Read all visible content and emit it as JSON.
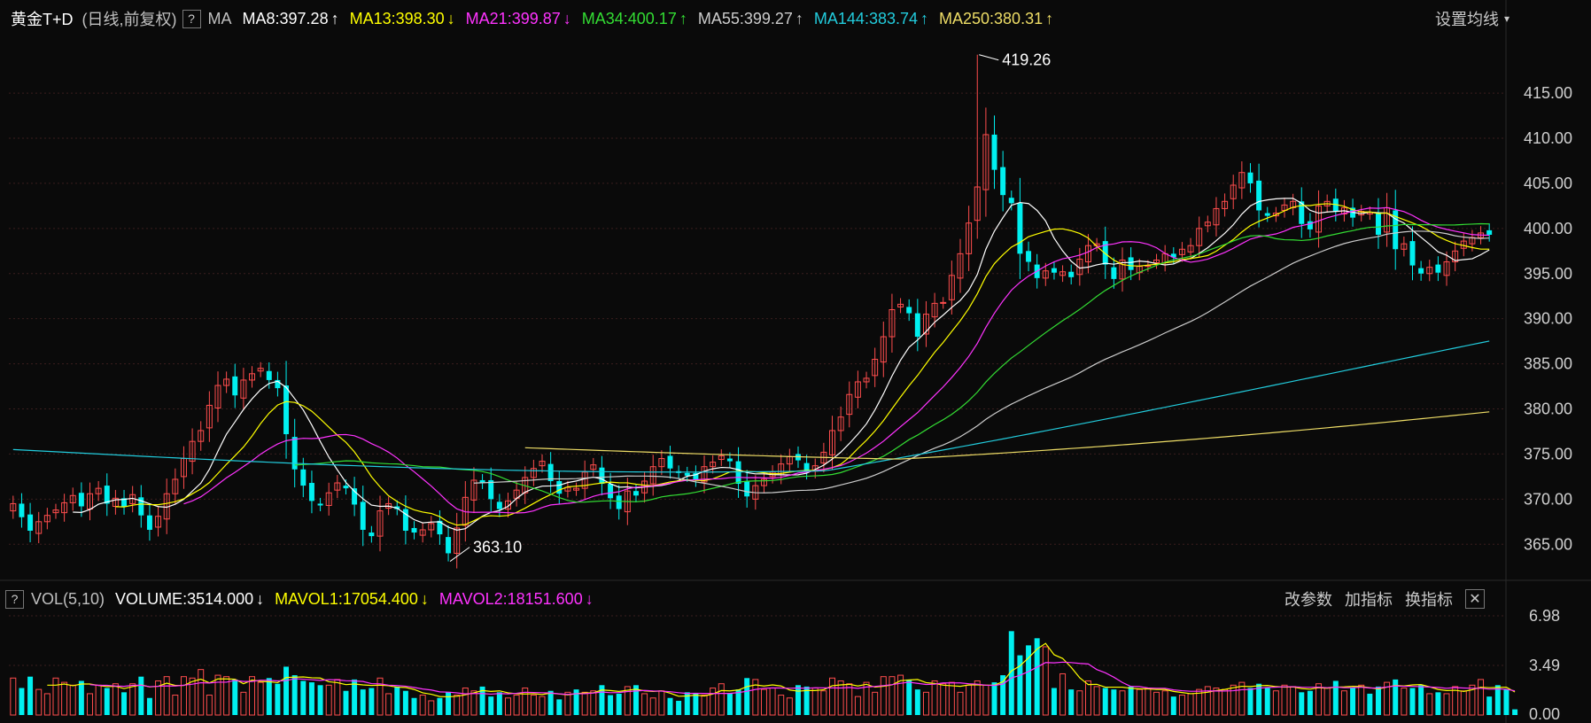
{
  "header": {
    "symbol": "黄金T+D",
    "period": "(日线,前复权)",
    "help": "?",
    "ma_prefix": "MA",
    "ma_items": [
      {
        "label": "MA8:397.28",
        "dir": "↑",
        "color": "#ffffff"
      },
      {
        "label": "MA13:398.30",
        "dir": "↓",
        "color": "#ffff00"
      },
      {
        "label": "MA21:399.87",
        "dir": "↓",
        "color": "#ff33ff"
      },
      {
        "label": "MA34:400.17",
        "dir": "↑",
        "color": "#33dd33"
      },
      {
        "label": "MA55:399.27",
        "dir": "↑",
        "color": "#cccccc"
      },
      {
        "label": "MA144:383.74",
        "dir": "↑",
        "color": "#22ccdd"
      },
      {
        "label": "MA250:380.31",
        "dir": "↑",
        "color": "#eedd66"
      }
    ],
    "settings": "设置均线",
    "settings_icon": "caret-down-icon"
  },
  "volume_header": {
    "help": "?",
    "name": "VOL(5,10)",
    "items": [
      {
        "label": "VOLUME:3514.000",
        "dir": "↓",
        "color": "#ffffff"
      },
      {
        "label": "MAVOL1:17054.400",
        "dir": "↓",
        "color": "#ffff00"
      },
      {
        "label": "MAVOL2:18151.600",
        "dir": "↓",
        "color": "#ff33ff"
      }
    ],
    "links": [
      "改参数",
      "加指标",
      "换指标"
    ],
    "close": "✕"
  },
  "colors": {
    "up": "#ff4d4d",
    "down": "#00f0f0",
    "grid": "#3a1e1e",
    "axis_text": "#d0d0d0"
  },
  "chart_data": [
    {
      "type": "candlestick",
      "title": "黄金T+D",
      "ylim": [
        361,
        421
      ],
      "y_ticks": [
        365,
        370,
        375,
        380,
        385,
        390,
        395,
        400,
        405,
        410,
        415
      ],
      "y_tick_labels": [
        "365.00",
        "370.00",
        "375.00",
        "380.00",
        "385.00",
        "390.00",
        "395.00",
        "400.00",
        "405.00",
        "410.00",
        "415.00"
      ],
      "annotations": [
        {
          "text": "419.26",
          "value": 419.26,
          "index": 113
        },
        {
          "text": "363.10",
          "value": 363.1,
          "index": 51
        }
      ],
      "closes": [
        369.5,
        368,
        366.5,
        367.5,
        368.2,
        368.8,
        369.6,
        370.4,
        369.2,
        370.6,
        371.2,
        369.5,
        370.1,
        369.2,
        370.5,
        368.2,
        366.6,
        368.1,
        370.6,
        372.2,
        374.5,
        376.4,
        377.6,
        380.4,
        382.6,
        383.3,
        381.5,
        383.2,
        383.9,
        384.5,
        383.2,
        382.3,
        377.2,
        373.3,
        371.5,
        369.8,
        369.3,
        370.7,
        371.8,
        371.2,
        369.4,
        366.6,
        365.9,
        368.7,
        369.5,
        368.9,
        366.5,
        366.3,
        366.6,
        367.3,
        366.1,
        364.0,
        366.8,
        370.2,
        372.1,
        371.8,
        370.0,
        368.9,
        369.8,
        371.0,
        372.4,
        373.4,
        374.2,
        372.0,
        370.6,
        371.3,
        371.2,
        373.0,
        373.8,
        371.7,
        370.1,
        368.9,
        370.9,
        370.4,
        372.0,
        373.6,
        374.5,
        373.4,
        372.9,
        372.6,
        372.2,
        373.6,
        374.1,
        374.8,
        374.2,
        371.7,
        370.3,
        371.5,
        372.2,
        373.0,
        373.9,
        374.7,
        374.3,
        373.1,
        373.7,
        375.2,
        377.6,
        379.1,
        381.6,
        383.0,
        383.4,
        385.5,
        388.0,
        391.0,
        391.6,
        390.6,
        388.0,
        390.5,
        391.7,
        391.8,
        394.8,
        397.2,
        400.6,
        404.6,
        410.4,
        406.5,
        403.7,
        402.8,
        397.2,
        396.3,
        394.5,
        395.3,
        395.1,
        395.2,
        394.6,
        396.6,
        398.1,
        398.3,
        396.0,
        394.4,
        396.5,
        395.4,
        395.8,
        395.9,
        396.5,
        397.2,
        396.8,
        397.7,
        398.1,
        400.0,
        400.7,
        402.2,
        403.0,
        404.8,
        406.2,
        405.0,
        402.0,
        401.4,
        401.7,
        402.6,
        403.0,
        400.5,
        399.9,
        402.5,
        403.0,
        401.9,
        402.3,
        401.2,
        401.9,
        401.8,
        399.3,
        402.3,
        397.7,
        398.3,
        395.9,
        395.0,
        395.7,
        395.1,
        396.3,
        397.5,
        398.6,
        399.0,
        399.5,
        399.3
      ]
    },
    {
      "type": "bar",
      "title": "VOL(5,10)",
      "ylim": [
        0,
        6.98
      ],
      "y_ticks": [
        0,
        3.49,
        6.98
      ],
      "y_tick_labels": [
        "0.00",
        "3.49",
        "6.98"
      ],
      "values": [
        2.6,
        1.9,
        2.7,
        1.8,
        1.5,
        2.6,
        2.3,
        2.1,
        2.4,
        1.5,
        2.1,
        1.9,
        2.2,
        1.6,
        2.2,
        2.7,
        1.2,
        2.4,
        2.7,
        1.4,
        2.7,
        2.6,
        3.2,
        1.4,
        2.8,
        2.7,
        2.5,
        1.6,
        2.7,
        2.3,
        2.6,
        2.2,
        3.4,
        2.8,
        2.4,
        2.3,
        2.1,
        2.1,
        2.5,
        1.7,
        2.5,
        1.8,
        1.9,
        2.6,
        1.5,
        2.0,
        1.7,
        1.2,
        1.4,
        1.0,
        1.2,
        1.6,
        1.4,
        1.9,
        1.7,
        2.0,
        1.3,
        1.6,
        1.2,
        1.4,
        1.9,
        1.4,
        1.3,
        1.7,
        1.1,
        1.6,
        1.8,
        1.6,
        1.7,
        2.1,
        1.4,
        1.5,
        2.0,
        2.1,
        1.5,
        1.2,
        1.7,
        1.2,
        1.0,
        1.6,
        1.5,
        1.4,
        1.9,
        2.2,
        1.5,
        1.8,
        2.6,
        2.5,
        1.8,
        1.9,
        1.4,
        1.2,
        2.1,
        2.0,
        1.9,
        1.7,
        2.6,
        2.4,
        2.2,
        1.3,
        2.3,
        1.6,
        2.7,
        2.7,
        2.8,
        2.5,
        1.8,
        1.6,
        2.4,
        2.2,
        2.3,
        1.6,
        2.1,
        2.4,
        2.1,
        2.3,
        2.8,
        5.9,
        4.2,
        4.9,
        5.4,
        4.8,
        1.9,
        2.9,
        1.8,
        1.7,
        2.4,
        2.0,
        1.9,
        1.8,
        1.7,
        2.0,
        1.8,
        1.9,
        1.6,
        1.7,
        1.3,
        1.4,
        1.5,
        1.8,
        2.0,
        1.9,
        1.8,
        2.1,
        2.3,
        1.9,
        2.2,
        1.9,
        1.7,
        2.1,
        2.0,
        1.6,
        1.7,
        2.2,
        1.9,
        2.4,
        1.7,
        1.9,
        2.1,
        1.5,
        2.0,
        2.3,
        2.5,
        1.9,
        1.9,
        2.1,
        1.5,
        1.6,
        1.5,
        2.0,
        1.7,
        2.1,
        2.5,
        1.3,
        2.1,
        1.8,
        0.4
      ]
    }
  ]
}
